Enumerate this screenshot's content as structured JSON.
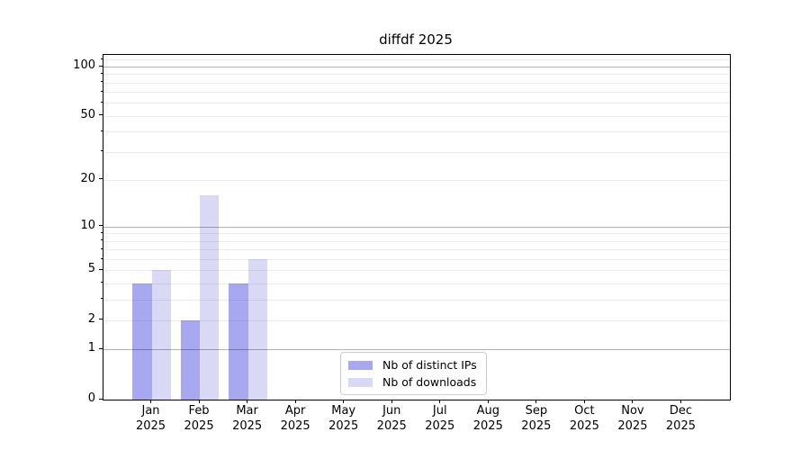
{
  "chart_data": {
    "type": "bar",
    "title": "diffdf 2025",
    "categories": [
      "Jan",
      "Feb",
      "Mar",
      "Apr",
      "May",
      "Jun",
      "Jul",
      "Aug",
      "Sep",
      "Oct",
      "Nov",
      "Dec"
    ],
    "year_label": "2025",
    "series": [
      {
        "name": "Nb of distinct IPs",
        "color": "#a8a8f0",
        "values": [
          4,
          2,
          4,
          0,
          0,
          0,
          0,
          0,
          0,
          0,
          0,
          0
        ]
      },
      {
        "name": "Nb of downloads",
        "color": "#d9d9f6",
        "values": [
          5,
          16,
          6,
          0,
          0,
          0,
          0,
          0,
          0,
          0,
          0,
          0
        ]
      }
    ],
    "y_axis": {
      "scale": "log1p",
      "ylim": [
        0,
        117.85
      ],
      "labeled_ticks": [
        0,
        1,
        2,
        5,
        10,
        20,
        50,
        100
      ],
      "major_gridlines": [
        1,
        10,
        100
      ],
      "minor_gridlines": [
        2,
        3,
        4,
        5,
        6,
        7,
        8,
        9,
        20,
        30,
        40,
        50,
        60,
        70,
        80,
        90,
        110
      ],
      "minor_tickmarks": [
        3,
        4,
        6,
        7,
        8,
        9,
        30,
        40,
        60,
        70,
        80,
        90,
        110
      ]
    },
    "x_axis": {
      "xlim_units": [
        -1,
        12
      ],
      "bar_width_units": 0.4
    },
    "legend": {
      "position": "lower center",
      "entries": [
        "Nb of distinct IPs",
        "Nb of downloads"
      ]
    },
    "grid": true
  },
  "colors": {
    "background": "#ffffff",
    "spine": "#000000",
    "text": "#000000",
    "major_grid": "rgba(0,0,0,0.30)",
    "minor_grid": "rgba(0,0,0,0.08)",
    "legend_border": "#cccccc",
    "legend_bg": "rgba(255,255,255,0.92)"
  }
}
